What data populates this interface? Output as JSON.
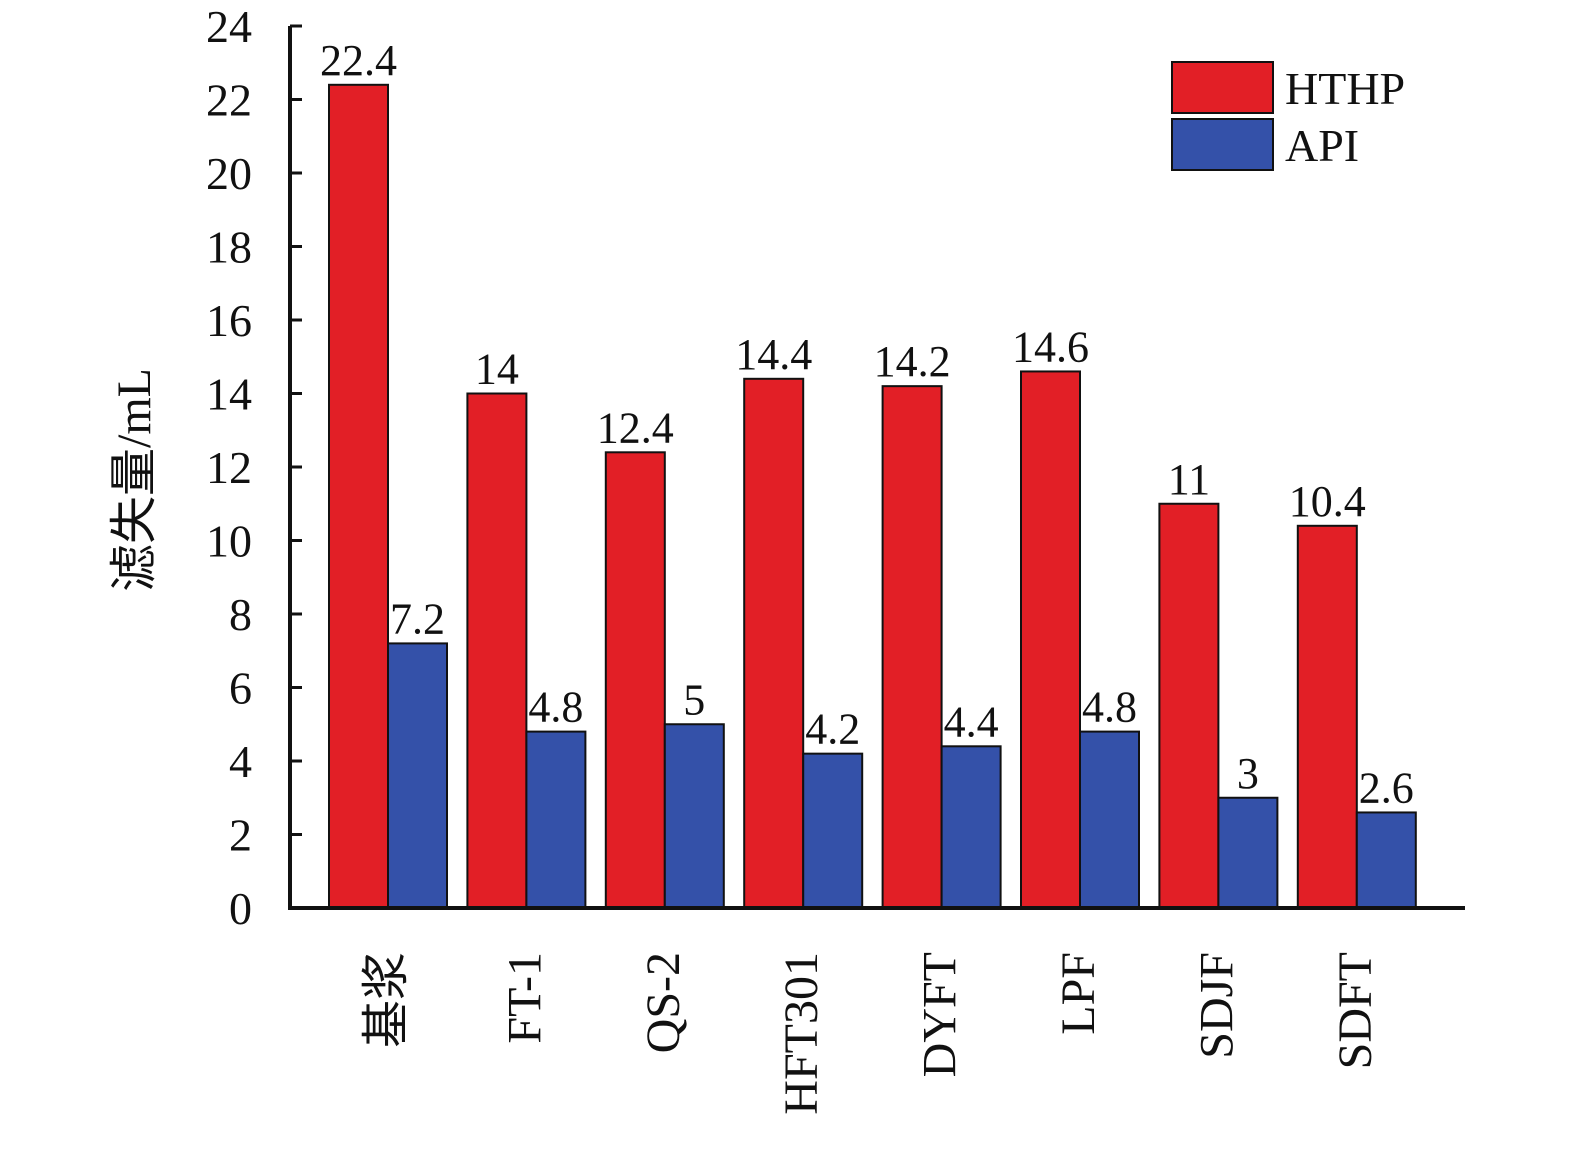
{
  "chart_data": {
    "type": "bar",
    "title": "",
    "xlabel": "",
    "ylabel": "滤失量/mL",
    "ylim": [
      0,
      24
    ],
    "yticks": [
      0,
      2,
      4,
      6,
      8,
      10,
      12,
      14,
      16,
      18,
      20,
      22,
      24
    ],
    "categories": [
      "基浆",
      "FT-1",
      "QS-2",
      "HFT301",
      "DYFT",
      "LPF",
      "SDJF",
      "SDFT"
    ],
    "series": [
      {
        "name": "HTHP",
        "color": "#e21f26",
        "values": [
          22.4,
          14,
          12.4,
          14.4,
          14.2,
          14.6,
          11,
          10.4
        ]
      },
      {
        "name": "API",
        "color": "#3451a9",
        "values": [
          7.2,
          4.8,
          5,
          4.2,
          4.4,
          4.8,
          3,
          2.6
        ]
      }
    ],
    "data_labels": [
      [
        "22.4",
        "14",
        "12.4",
        "14.4",
        "14.2",
        "14.6",
        "11",
        "10.4"
      ],
      [
        "7.2",
        "4.8",
        "5",
        "4.2",
        "4.4",
        "4.8",
        "3",
        "2.6"
      ]
    ],
    "grid": false,
    "legend": "top-right"
  }
}
